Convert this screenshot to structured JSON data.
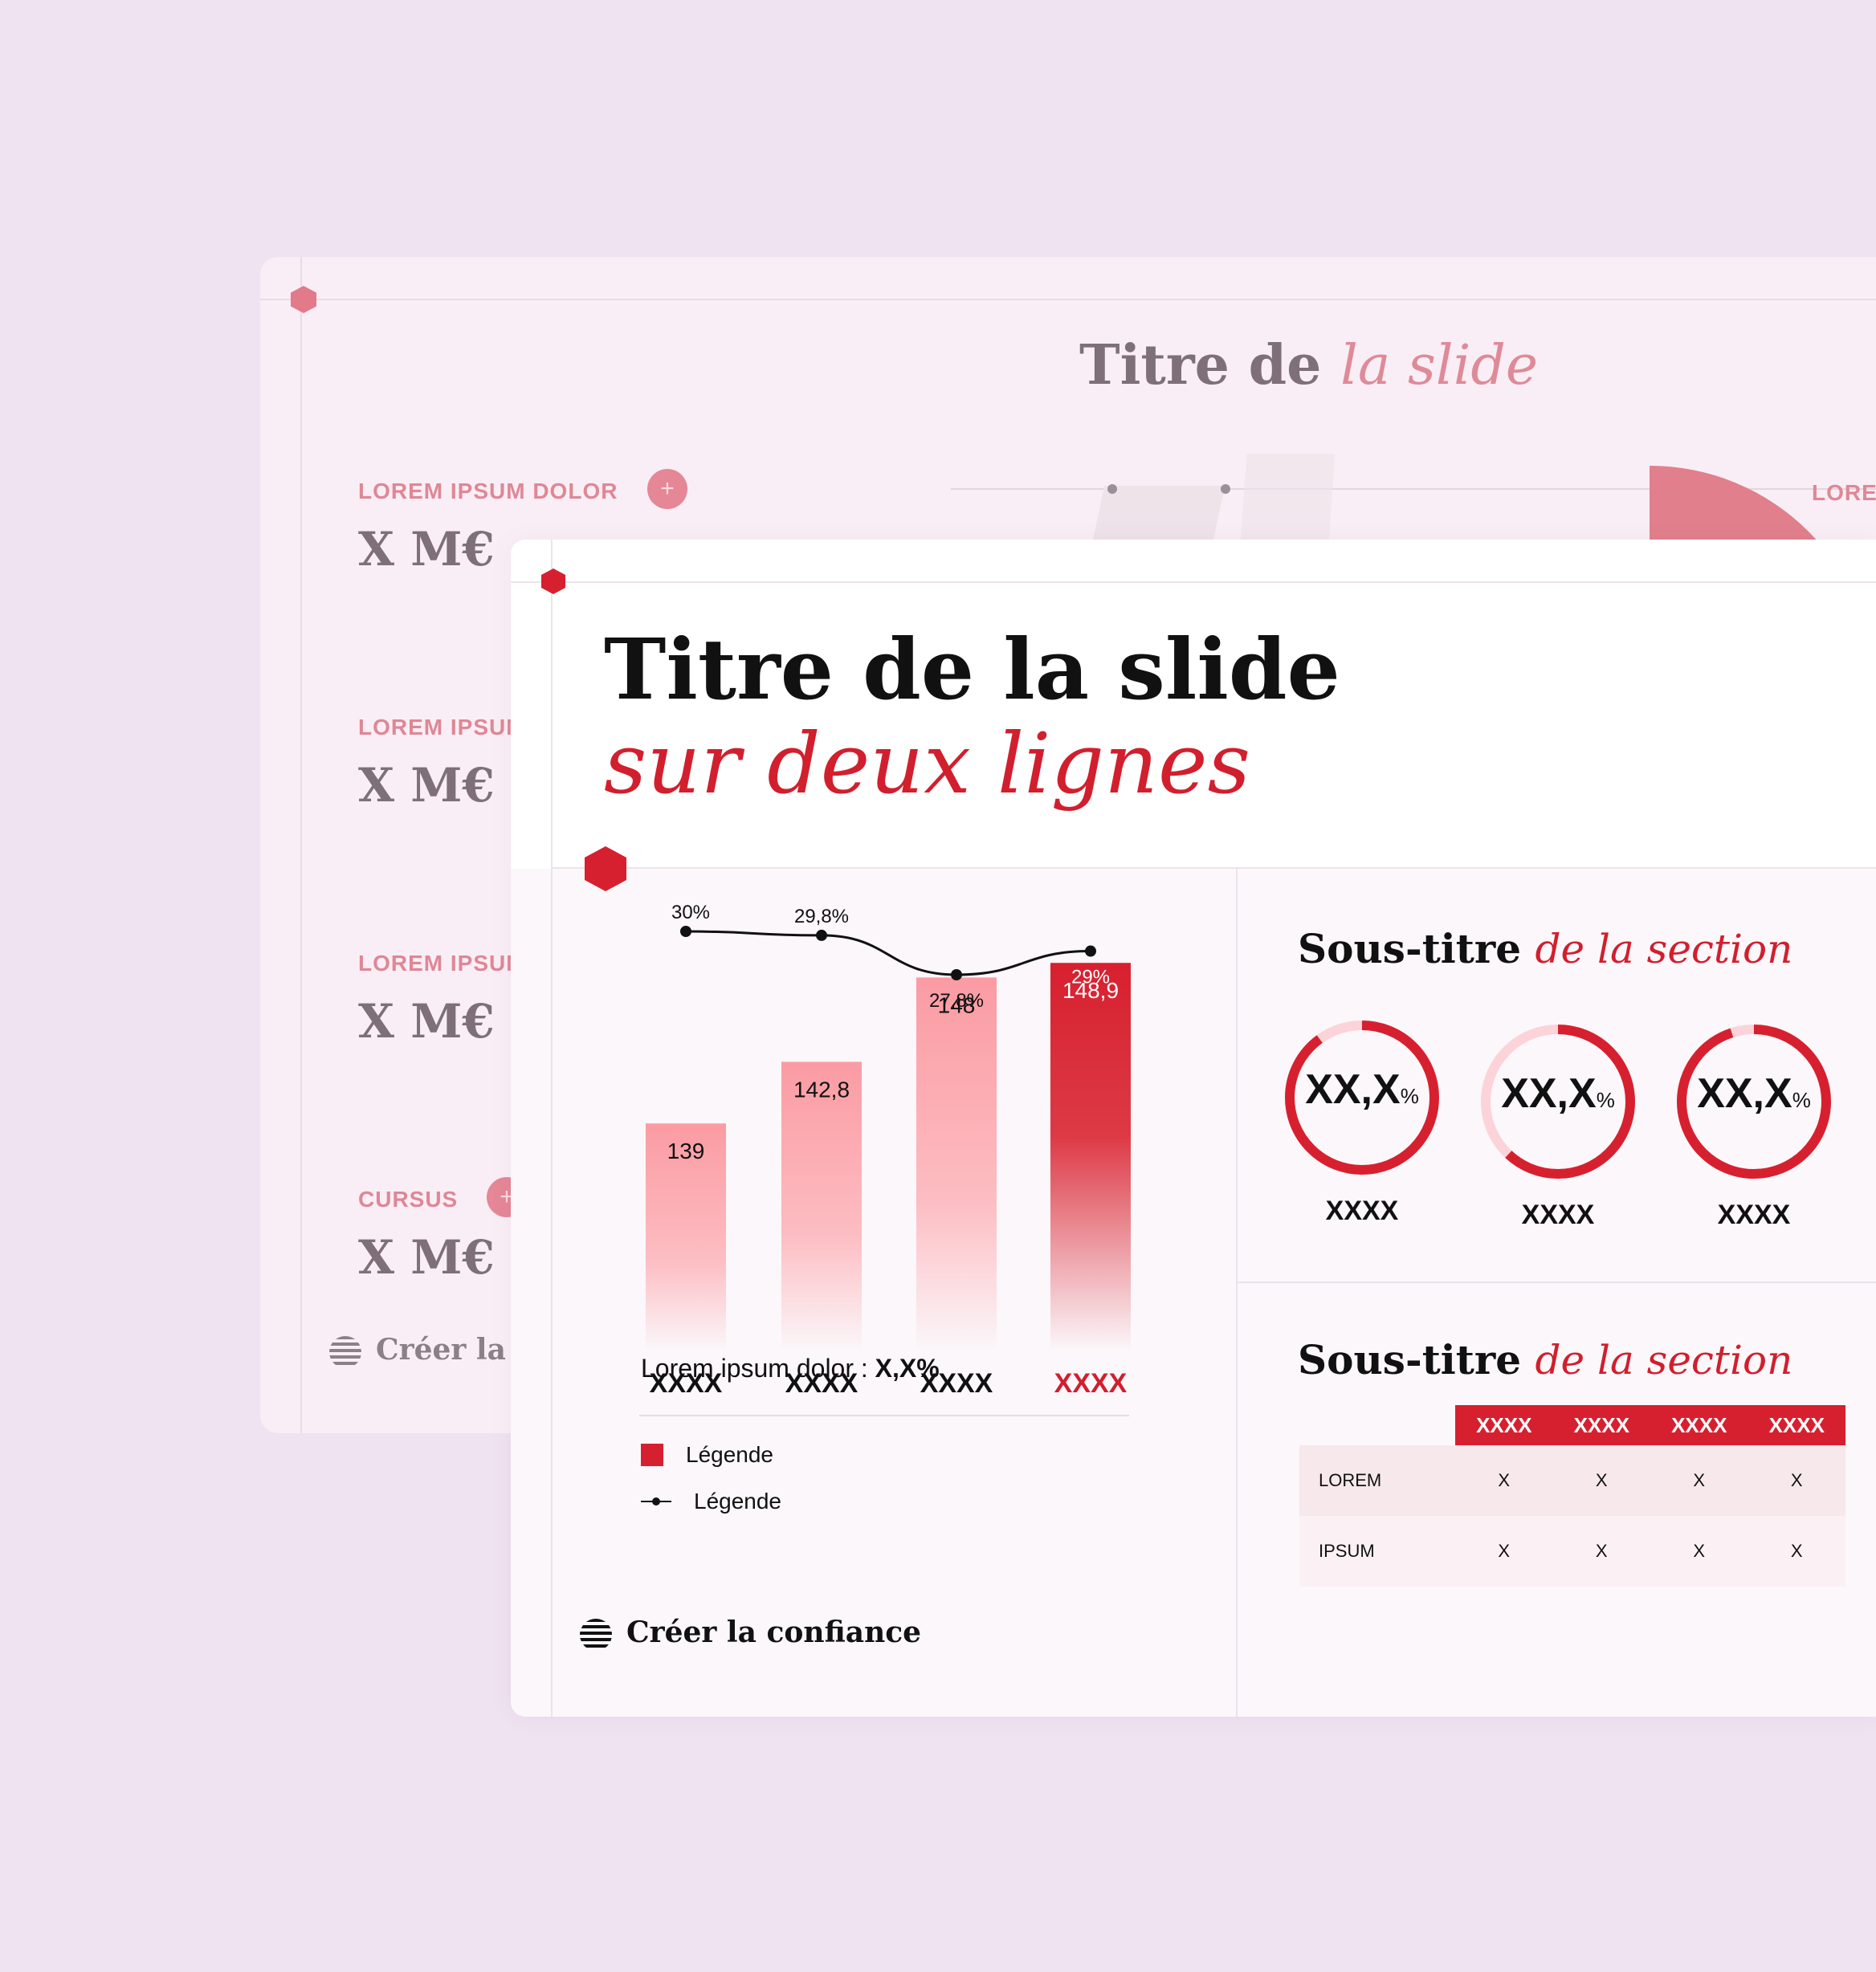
{
  "back_slide": {
    "title_plain": "Titre de ",
    "title_accent": "la slide",
    "rows": [
      {
        "label": "LOREM IPSUM DOLOR",
        "value": "X M€"
      },
      {
        "label": "LOREM IPSUM",
        "value": "X M€"
      },
      {
        "label": "LOREM IPSUM",
        "value": "X M€"
      },
      {
        "label": "CURSUS",
        "value": "X M€"
      }
    ],
    "right_label": "LOREM",
    "plus_icon": "+",
    "footer": "Créer la c"
  },
  "front_slide": {
    "title_line1": "Titre de la slide",
    "title_line2": "sur deux lignes",
    "footer": "Créer la confiance"
  },
  "chart_data": {
    "type": "bar",
    "categories": [
      "XXXX",
      "XXXX",
      "XXXX",
      "XXXX"
    ],
    "series": [
      {
        "name": "Légende",
        "type": "bar",
        "values": [
          139,
          142.8,
          148,
          148.9
        ],
        "labels": [
          "139",
          "142,8",
          "148",
          "148,9"
        ]
      },
      {
        "name": "Légende",
        "type": "line",
        "values": [
          30,
          29.8,
          27.8,
          29
        ],
        "labels": [
          "30%",
          "29,8%",
          "27,8%",
          "29%"
        ]
      }
    ],
    "highlight_index": 3,
    "colors": {
      "bar": "#fb9ba3",
      "bar_highlight": "#d7202f",
      "line": "#111111"
    },
    "note_text": "Lorem ipsum dolor : ",
    "note_value": "X,X%",
    "legend": [
      "Légende",
      "Légende"
    ]
  },
  "section_gauges": {
    "title_plain": "Sous-titre ",
    "title_accent": "de la section",
    "items": [
      {
        "value": "XX,X",
        "unit": "%",
        "label": "XXXX",
        "fill": 0.9
      },
      {
        "value": "XX,X",
        "unit": "%",
        "label": "XXXX",
        "fill": 0.62
      },
      {
        "value": "XX,X",
        "unit": "%",
        "label": "XXXX",
        "fill": 0.95
      }
    ]
  },
  "section_table": {
    "title_plain": "Sous-titre ",
    "title_accent": "de la section",
    "headers": [
      "XXXX",
      "XXXX",
      "XXXX",
      "XXXX"
    ],
    "rows": [
      {
        "label": "LOREM",
        "cells": [
          "X",
          "X",
          "X",
          "X"
        ]
      },
      {
        "label": "IPSUM",
        "cells": [
          "X",
          "X",
          "X",
          "X"
        ]
      }
    ]
  }
}
